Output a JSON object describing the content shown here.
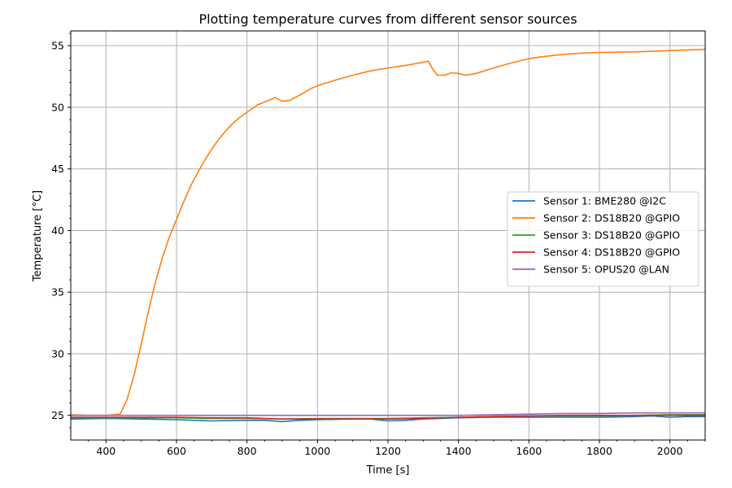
{
  "chart_data": {
    "type": "line",
    "title": "Plotting temperature curves from different sensor sources",
    "xlabel": "Time [s]",
    "ylabel": "Temperature [°C]",
    "xlim": [
      300,
      2100
    ],
    "ylim": [
      23,
      56.2
    ],
    "xticks": [
      400,
      600,
      800,
      1000,
      1200,
      1400,
      1600,
      1800,
      2000
    ],
    "yticks": [
      25,
      30,
      35,
      40,
      45,
      50,
      55
    ],
    "grid": true,
    "legend_position": "center-right",
    "series": [
      {
        "name": "Sensor 1: BME280 @I2C",
        "color": "#1f77b4",
        "x": [
          300,
          400,
          500,
          600,
          700,
          800,
          850,
          900,
          950,
          1000,
          1100,
          1150,
          1200,
          1250,
          1300,
          1400,
          1500,
          1600,
          1700,
          1800,
          1900,
          1950,
          2000,
          2050,
          2100
        ],
        "y": [
          24.7,
          24.75,
          24.7,
          24.65,
          24.55,
          24.6,
          24.6,
          24.5,
          24.6,
          24.65,
          24.7,
          24.7,
          24.55,
          24.6,
          24.7,
          24.8,
          24.85,
          24.85,
          24.85,
          24.85,
          24.9,
          24.95,
          24.85,
          24.9,
          24.9
        ]
      },
      {
        "name": "Sensor 2: DS18B20 @GPIO",
        "color": "#ff7f0e",
        "x": [
          300,
          350,
          400,
          440,
          460,
          480,
          500,
          520,
          540,
          560,
          580,
          600,
          620,
          640,
          660,
          680,
          700,
          720,
          740,
          760,
          780,
          800,
          830,
          860,
          880,
          900,
          920,
          950,
          980,
          1000,
          1050,
          1100,
          1150,
          1200,
          1250,
          1300,
          1315,
          1325,
          1340,
          1360,
          1380,
          1400,
          1420,
          1450,
          1500,
          1550,
          1600,
          1650,
          1700,
          1750,
          1800,
          1900,
          2000,
          2100
        ],
        "y": [
          25.05,
          25.0,
          25.0,
          25.1,
          26.3,
          28.3,
          30.8,
          33.4,
          35.8,
          37.8,
          39.5,
          40.9,
          42.3,
          43.6,
          44.7,
          45.7,
          46.6,
          47.4,
          48.1,
          48.7,
          49.2,
          49.6,
          50.2,
          50.55,
          50.8,
          50.5,
          50.55,
          51.0,
          51.5,
          51.75,
          52.2,
          52.6,
          52.95,
          53.2,
          53.4,
          53.65,
          53.75,
          53.2,
          52.6,
          52.6,
          52.8,
          52.75,
          52.6,
          52.75,
          53.2,
          53.6,
          53.95,
          54.15,
          54.3,
          54.4,
          54.45,
          54.5,
          54.6,
          54.7
        ]
      },
      {
        "name": "Sensor 3: DS18B20 @GPIO",
        "color": "#2ca02c",
        "x": [
          300,
          400,
          500,
          600,
          700,
          800,
          900,
          1000,
          1100,
          1200,
          1300,
          1400,
          1500,
          1600,
          1700,
          1800,
          1900,
          2000,
          2100
        ],
        "y": [
          24.8,
          24.8,
          24.8,
          24.8,
          24.75,
          24.75,
          24.7,
          24.75,
          24.75,
          24.75,
          24.8,
          24.85,
          24.9,
          24.95,
          24.95,
          24.95,
          25.0,
          25.05,
          25.05
        ]
      },
      {
        "name": "Sensor 4: DS18B20 @GPIO",
        "color": "#d62728",
        "x": [
          300,
          400,
          500,
          600,
          700,
          800,
          900,
          1000,
          1100,
          1200,
          1300,
          1400,
          1500,
          1600,
          1700,
          1800,
          1900,
          2000,
          2100
        ],
        "y": [
          24.85,
          24.85,
          24.85,
          24.85,
          24.8,
          24.8,
          24.7,
          24.7,
          24.7,
          24.7,
          24.75,
          24.85,
          24.9,
          24.95,
          25.0,
          25.0,
          25.0,
          25.0,
          25.0
        ]
      },
      {
        "name": "Sensor 5: OPUS20 @LAN",
        "color": "#9467bd",
        "x": [
          300,
          400,
          500,
          600,
          700,
          800,
          900,
          1000,
          1100,
          1200,
          1300,
          1400,
          1500,
          1600,
          1700,
          1800,
          1900,
          2000,
          2100
        ],
        "y": [
          25.0,
          25.0,
          25.0,
          25.0,
          25.0,
          25.0,
          25.0,
          25.0,
          25.0,
          25.0,
          25.0,
          25.0,
          25.05,
          25.1,
          25.15,
          25.15,
          25.2,
          25.2,
          25.2
        ]
      }
    ]
  }
}
